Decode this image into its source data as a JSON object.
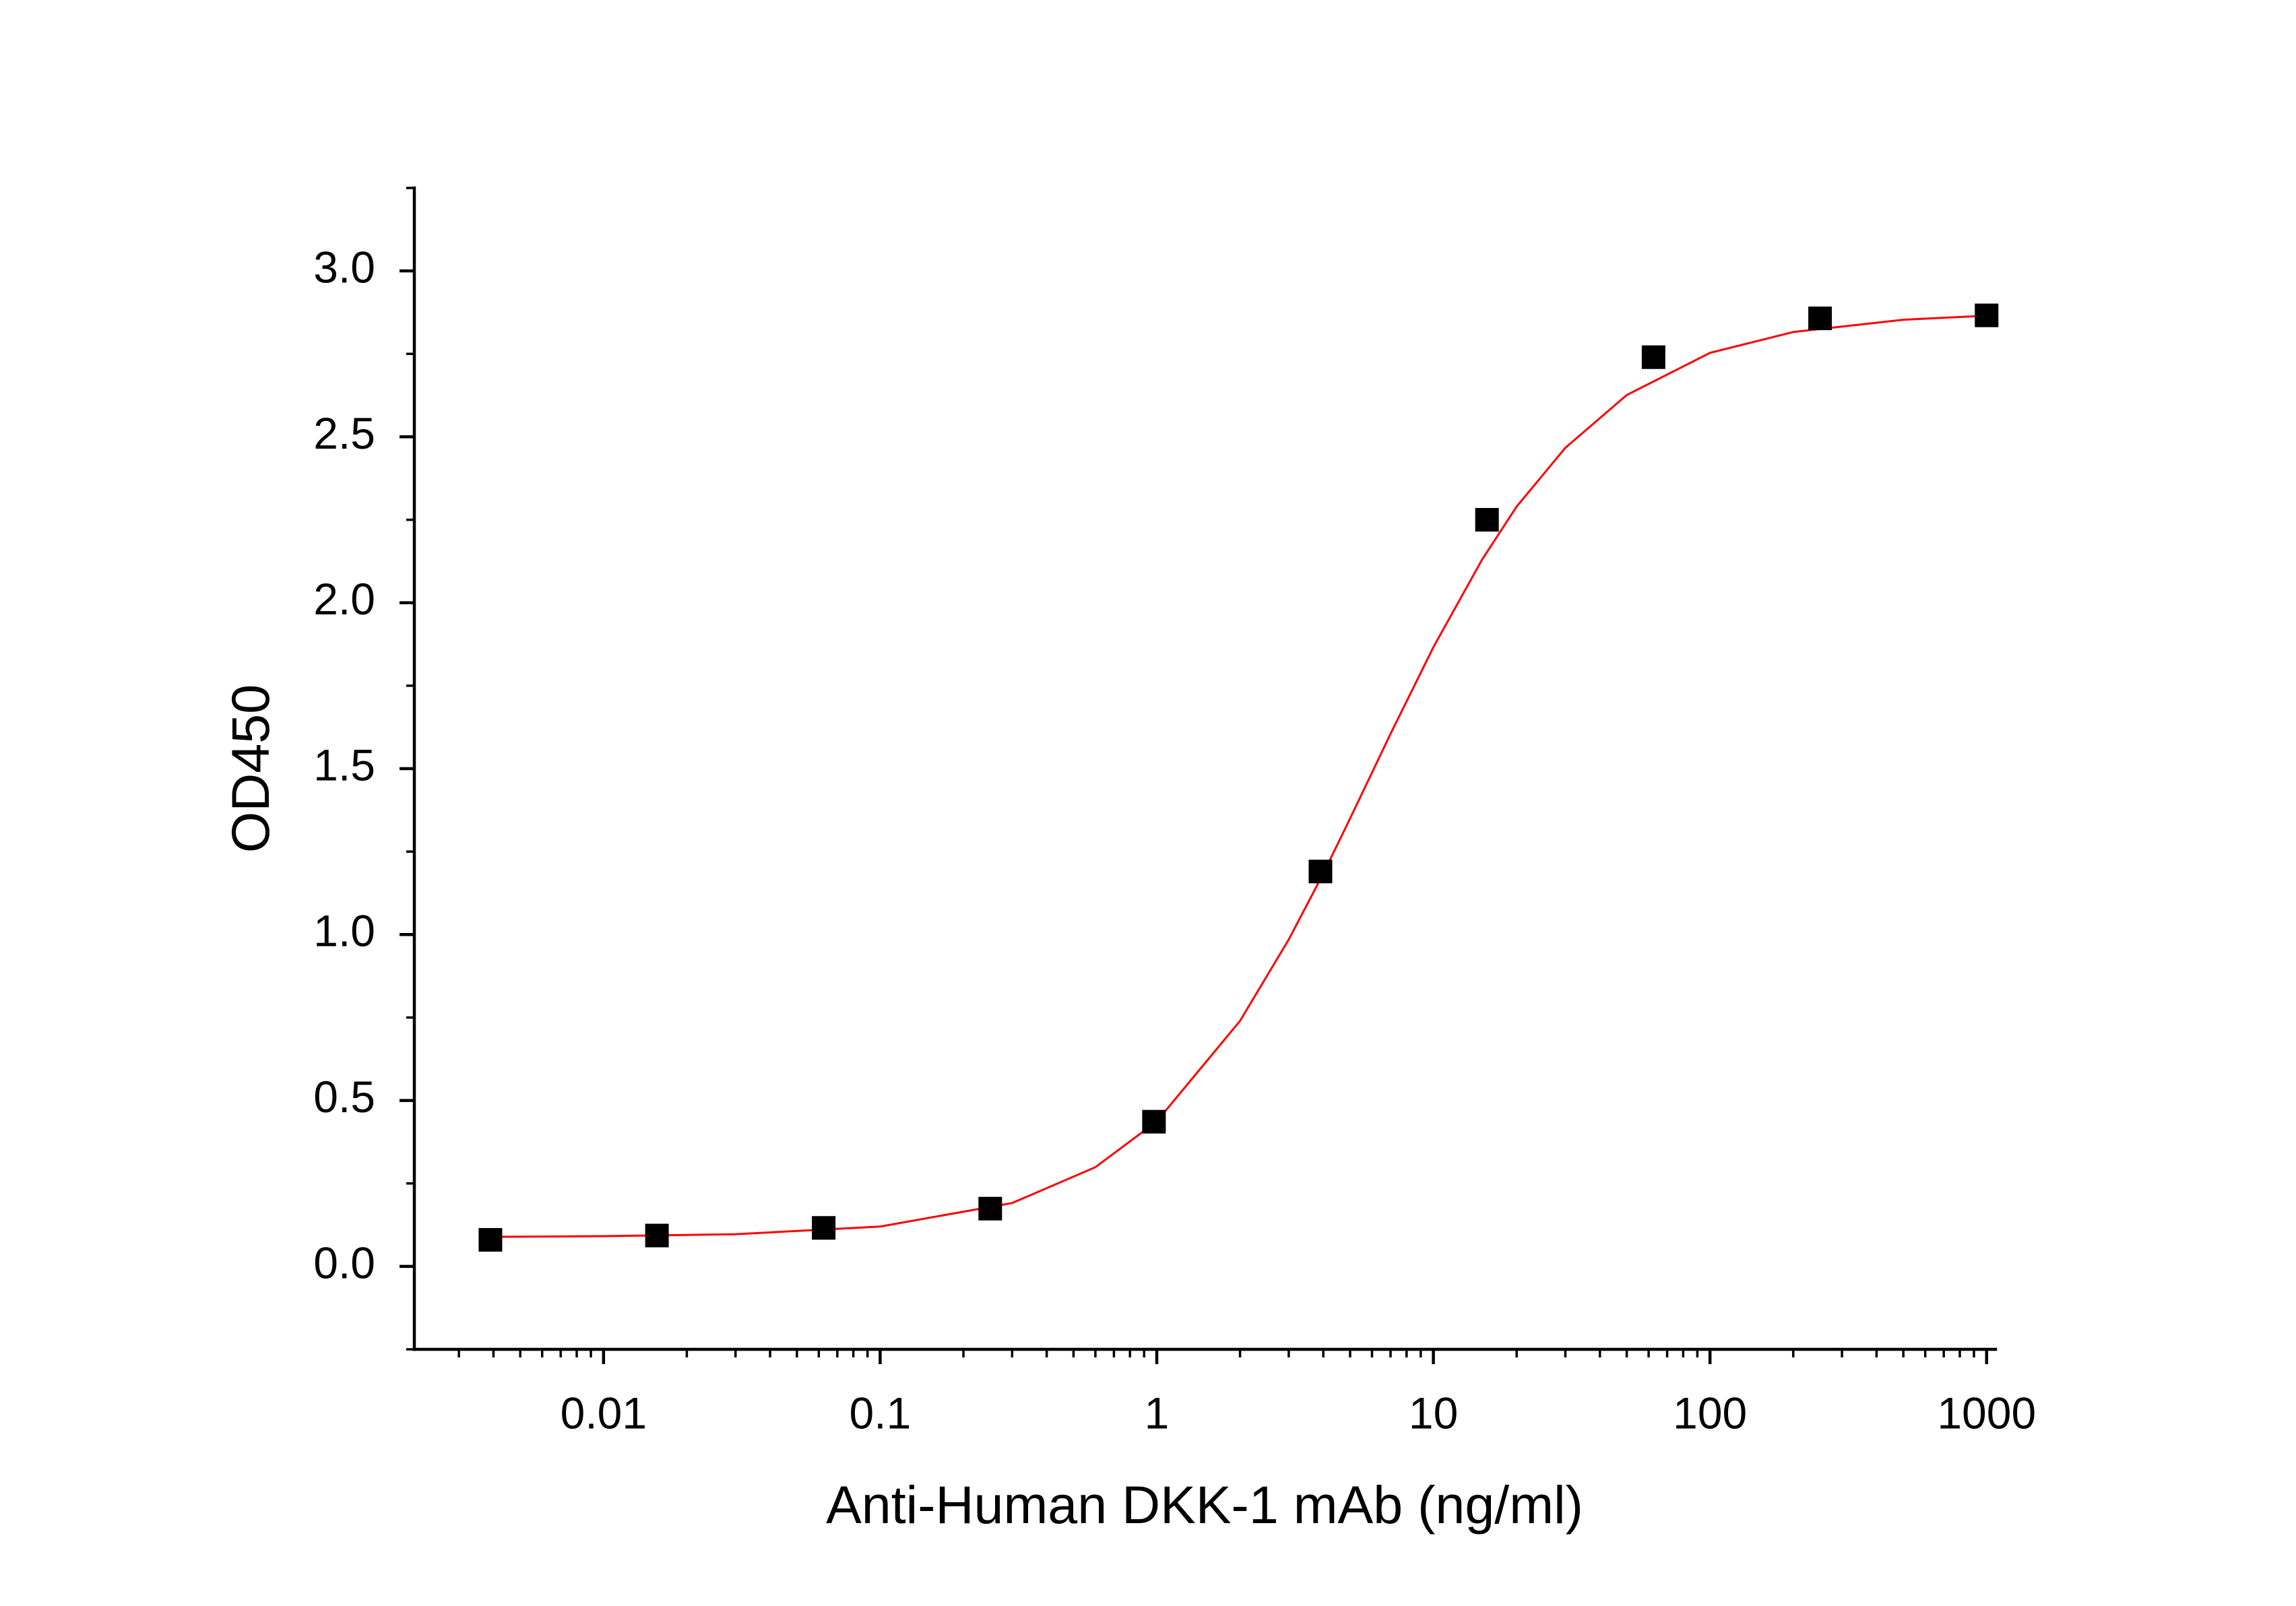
{
  "chart_data": {
    "type": "scatter",
    "x_label": "Anti-Human DKK-1 mAb (ng/ml)",
    "y_label": "OD450",
    "x_scale": "log",
    "minor_ticks": true,
    "grid": false,
    "xlim": [
      0.00207,
      1077
    ],
    "ylim": [
      -0.25,
      3.25
    ],
    "xticks": [
      0.01,
      0.1,
      1,
      10,
      100,
      1000
    ],
    "yticks": [
      {
        "value": 0,
        "label": "0.0"
      },
      {
        "value": 0.5,
        "label": "0.5"
      },
      {
        "value": 1,
        "label": "1.0"
      },
      {
        "value": 1.5,
        "label": "1.5"
      },
      {
        "value": 2,
        "label": "2.0"
      },
      {
        "value": 2.5,
        "label": "2.5"
      },
      {
        "value": 3,
        "label": "3.0"
      }
    ],
    "series": [
      {
        "kind": "points",
        "color": "#000000",
        "x": [
          0.0039,
          0.0156,
          0.0625,
          0.25,
          0.977,
          3.906,
          15.625,
          62.5,
          250,
          1000
        ],
        "values": [
          0.08,
          0.093,
          0.116,
          0.174,
          0.436,
          1.19,
          2.25,
          2.74,
          2.857,
          2.866
        ]
      },
      {
        "kind": "curve",
        "color": "#ff0000",
        "x": [
          0.004,
          0.01,
          0.03,
          0.1,
          0.3,
          0.6,
          1,
          2,
          3,
          4,
          5,
          7,
          10,
          15,
          20,
          30,
          50,
          100,
          200,
          500,
          1000
        ],
        "values": [
          0.089,
          0.091,
          0.097,
          0.12,
          0.191,
          0.299,
          0.437,
          0.74,
          0.985,
          1.184,
          1.35,
          1.605,
          1.866,
          2.13,
          2.29,
          2.467,
          2.626,
          2.753,
          2.816,
          2.853,
          2.865
        ]
      }
    ]
  }
}
